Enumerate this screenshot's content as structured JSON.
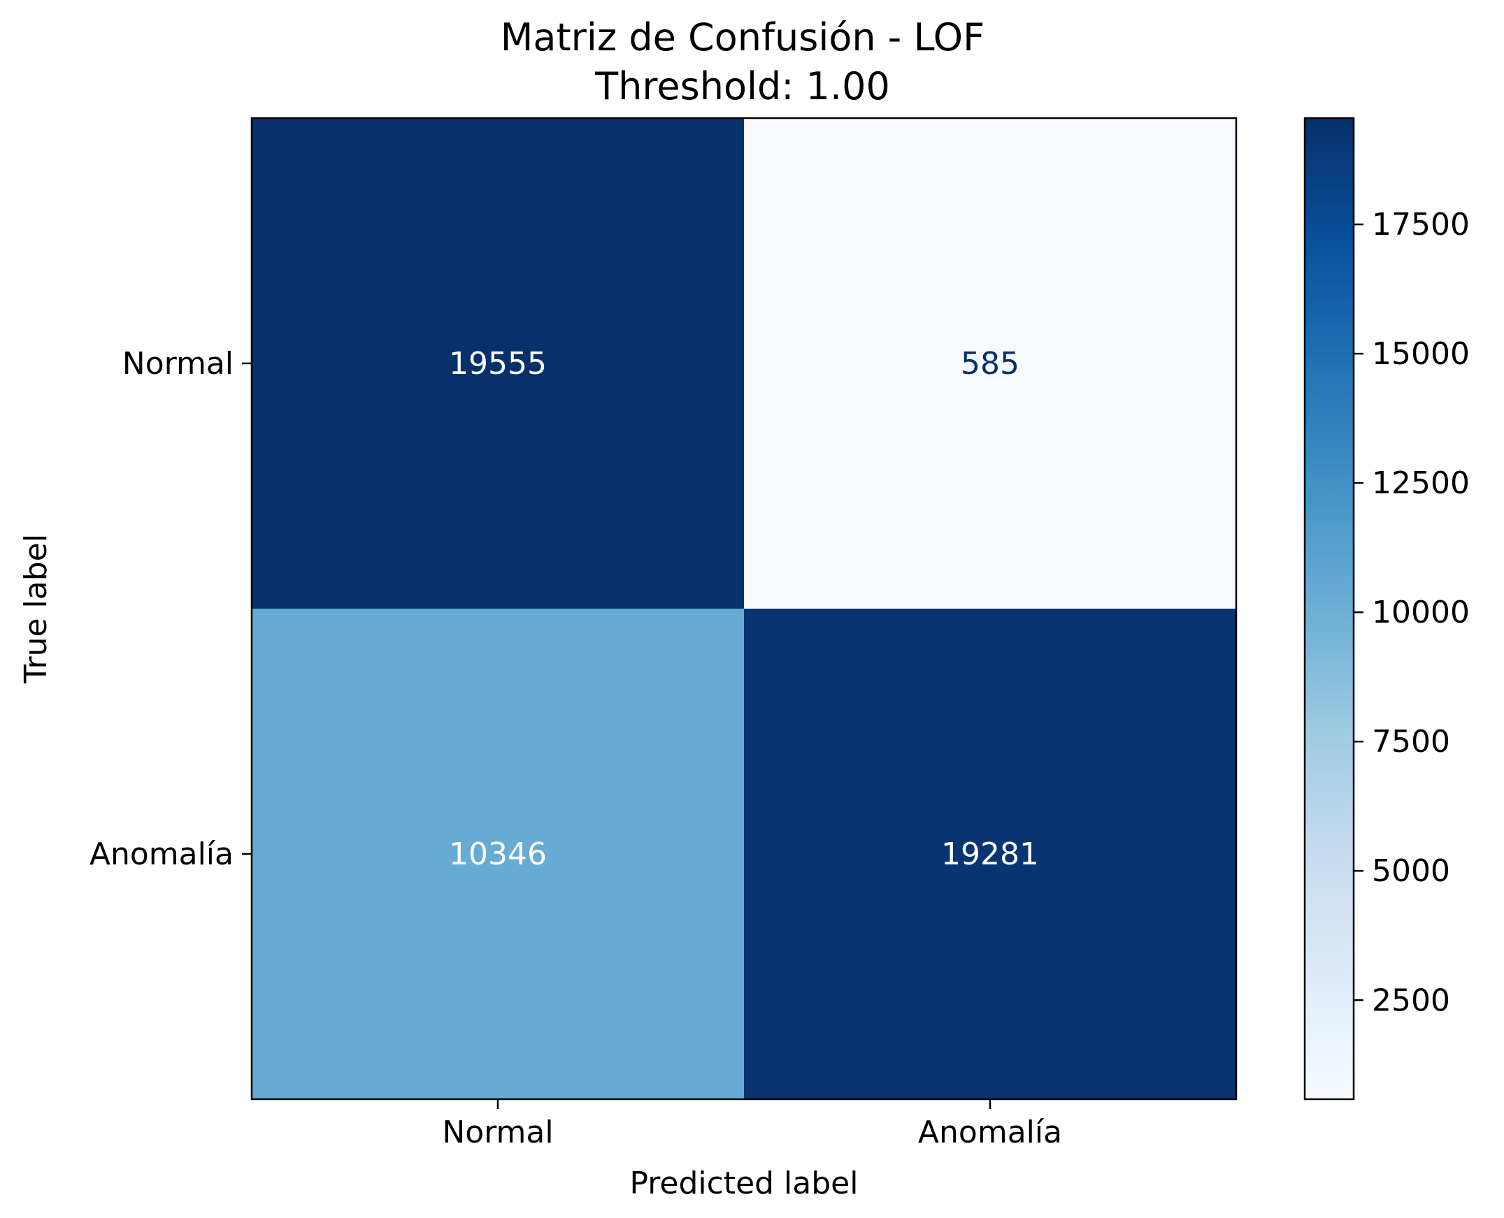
{
  "chart_data": {
    "type": "heatmap",
    "title": "Matriz de Confusión - LOF",
    "subtitle": "Threshold: 1.00",
    "xlabel": "Predicted label",
    "ylabel": "True label",
    "x_categories": [
      "Normal",
      "Anomalía"
    ],
    "y_categories": [
      "Normal",
      "Anomalía"
    ],
    "values": [
      [
        19555,
        585
      ],
      [
        10346,
        19281
      ]
    ],
    "colormap": "Blues",
    "colorbar": {
      "min": 585,
      "max": 19555,
      "ticks": [
        2500,
        5000,
        7500,
        10000,
        12500,
        15000,
        17500
      ]
    },
    "grid": false,
    "legend": "none"
  },
  "colors": {
    "cmap_stops": [
      "#f7fbff",
      "#deebf7",
      "#c6dbef",
      "#9ecae1",
      "#6baed6",
      "#4292c6",
      "#2171b5",
      "#08519c",
      "#08306b"
    ],
    "text_dark": "#08306b",
    "text_light": "#ffffff",
    "axis": "#000000"
  }
}
